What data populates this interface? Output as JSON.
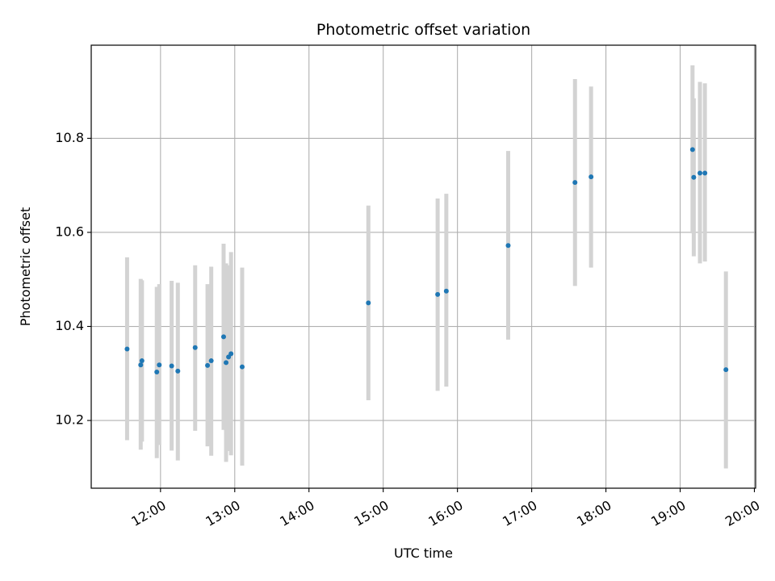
{
  "chart_data": {
    "type": "scatter",
    "title": "Photometric offset variation",
    "xlabel": "UTC time",
    "ylabel": "Photometric offset",
    "x_ticks": [
      "12:00",
      "13:00",
      "14:00",
      "15:00",
      "16:00",
      "17:00",
      "18:00",
      "19:00",
      "20:00"
    ],
    "y_ticks": [
      "10.2",
      "10.4",
      "10.6",
      "10.8"
    ],
    "y_tick_values": [
      10.2,
      10.4,
      10.6,
      10.8
    ],
    "xlim": [
      "11:04",
      "20:01"
    ],
    "ylim": [
      10.056,
      10.998
    ],
    "grid": true,
    "colors": {
      "point": "#1f77b4",
      "errorbar": "#d3d3d3",
      "grid": "#b0b0b0"
    },
    "series": [
      {
        "points": [
          {
            "x": "11:33",
            "y": 10.352,
            "lo": 10.158,
            "hi": 10.547
          },
          {
            "x": "11:44",
            "y": 10.318,
            "lo": 10.138,
            "hi": 10.501
          },
          {
            "x": "11:45",
            "y": 10.327,
            "lo": 10.155,
            "hi": 10.498
          },
          {
            "x": "11:57",
            "y": 10.303,
            "lo": 10.12,
            "hi": 10.484
          },
          {
            "x": "11:59",
            "y": 10.318,
            "lo": 10.148,
            "hi": 10.49
          },
          {
            "x": "12:09",
            "y": 10.316,
            "lo": 10.136,
            "hi": 10.497
          },
          {
            "x": "12:14",
            "y": 10.305,
            "lo": 10.115,
            "hi": 10.493
          },
          {
            "x": "12:28",
            "y": 10.355,
            "lo": 10.178,
            "hi": 10.53
          },
          {
            "x": "12:38",
            "y": 10.317,
            "lo": 10.145,
            "hi": 10.49
          },
          {
            "x": "12:41",
            "y": 10.327,
            "lo": 10.125,
            "hi": 10.527
          },
          {
            "x": "12:51",
            "y": 10.378,
            "lo": 10.18,
            "hi": 10.576
          },
          {
            "x": "12:53",
            "y": 10.323,
            "lo": 10.112,
            "hi": 10.534
          },
          {
            "x": "12:55",
            "y": 10.335,
            "lo": 10.135,
            "hi": 10.53
          },
          {
            "x": "12:57",
            "y": 10.342,
            "lo": 10.126,
            "hi": 10.558
          },
          {
            "x": "13:06",
            "y": 10.314,
            "lo": 10.104,
            "hi": 10.525
          },
          {
            "x": "14:48",
            "y": 10.45,
            "lo": 10.243,
            "hi": 10.657
          },
          {
            "x": "15:44",
            "y": 10.468,
            "lo": 10.263,
            "hi": 10.672
          },
          {
            "x": "15:51",
            "y": 10.475,
            "lo": 10.272,
            "hi": 10.682
          },
          {
            "x": "16:41",
            "y": 10.572,
            "lo": 10.372,
            "hi": 10.773
          },
          {
            "x": "17:35",
            "y": 10.706,
            "lo": 10.486,
            "hi": 10.926
          },
          {
            "x": "17:48",
            "y": 10.718,
            "lo": 10.525,
            "hi": 10.91
          },
          {
            "x": "19:10",
            "y": 10.776,
            "lo": 10.598,
            "hi": 10.955
          },
          {
            "x": "19:11",
            "y": 10.717,
            "lo": 10.549,
            "hi": 10.885
          },
          {
            "x": "19:16",
            "y": 10.726,
            "lo": 10.534,
            "hi": 10.92
          },
          {
            "x": "19:20",
            "y": 10.726,
            "lo": 10.538,
            "hi": 10.917
          },
          {
            "x": "19:37",
            "y": 10.308,
            "lo": 10.098,
            "hi": 10.517
          }
        ]
      }
    ]
  }
}
